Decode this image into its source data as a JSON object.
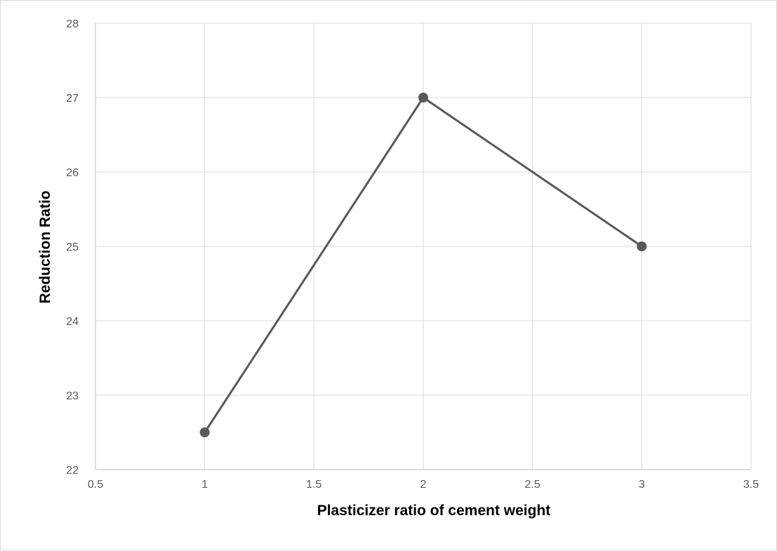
{
  "chart_data": {
    "type": "line",
    "title": "",
    "xlabel": "Plasticizer ratio of cement weight",
    "ylabel": "Reduction Ratio",
    "xlim": [
      0.5,
      3.5
    ],
    "ylim": [
      22,
      28
    ],
    "xticks": [
      "0.5",
      "1",
      "1.5",
      "2",
      "2.5",
      "3",
      "3.5"
    ],
    "yticks": [
      "22",
      "23",
      "24",
      "25",
      "26",
      "27",
      "28"
    ],
    "grid": true,
    "legend": "none",
    "series": [
      {
        "x": [
          1,
          2,
          3
        ],
        "y": [
          22.5,
          27,
          25
        ]
      }
    ],
    "colors": {
      "series": "#595959",
      "grid": "#d9d9d9",
      "axis": "#bfbfbf"
    }
  }
}
